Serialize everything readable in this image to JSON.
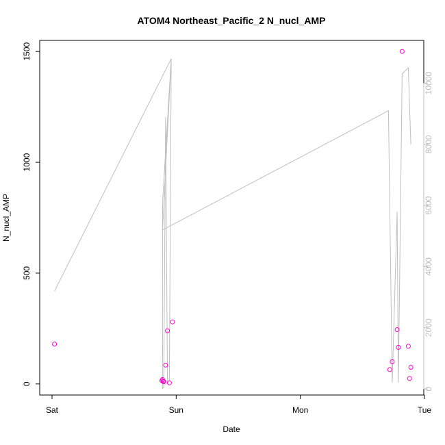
{
  "chart_data": {
    "type": "scatter",
    "title": "ATOM4 Northeast_Pacific_2 N_nucl_AMP",
    "xlabel": "Date",
    "ylabel": "N_nucl_AMP",
    "xlim": [
      0.0,
      3.0
    ],
    "ylim": [
      -50,
      1550
    ],
    "y2lim": [
      -200,
      11400
    ],
    "x_ticks": [
      {
        "value": 0,
        "label": "Sat"
      },
      {
        "value": 1,
        "label": "Sun"
      },
      {
        "value": 2,
        "label": "Mon"
      },
      {
        "value": 3,
        "label": "Tue"
      }
    ],
    "y_ticks": [
      0,
      500,
      1000,
      1500
    ],
    "y2_ticks": [
      0,
      2000,
      4000,
      6000,
      8000,
      10000
    ],
    "grid": false,
    "colors": {
      "points": "#ff00cc",
      "line": "#bebebe",
      "axis": "#000000"
    },
    "series": [
      {
        "axis": "left",
        "style": "points",
        "x": [
          0.02,
          0.885,
          0.89,
          0.895,
          0.9,
          0.915,
          0.93,
          0.945,
          0.97,
          2.72,
          2.74,
          2.78,
          2.79,
          2.82,
          2.87,
          2.88,
          2.89
        ],
        "y": [
          180,
          15,
          20,
          12,
          10,
          85,
          240,
          5,
          280,
          65,
          100,
          245,
          165,
          1500,
          170,
          25,
          75
        ]
      },
      {
        "axis": "right",
        "style": "line",
        "x": [
          0.02,
          0.96,
          0.89,
          0.89,
          0.9,
          0.915,
          0.93,
          0.945,
          0.96,
          0.89,
          2.71,
          2.74,
          2.78,
          2.79,
          2.82,
          2.87,
          2.89
        ],
        "y": [
          3200,
          10800,
          6100,
          10,
          50,
          8900,
          200,
          300,
          10800,
          5200,
          9100,
          200,
          5800,
          200,
          10300,
          10500,
          8000
        ]
      }
    ]
  }
}
